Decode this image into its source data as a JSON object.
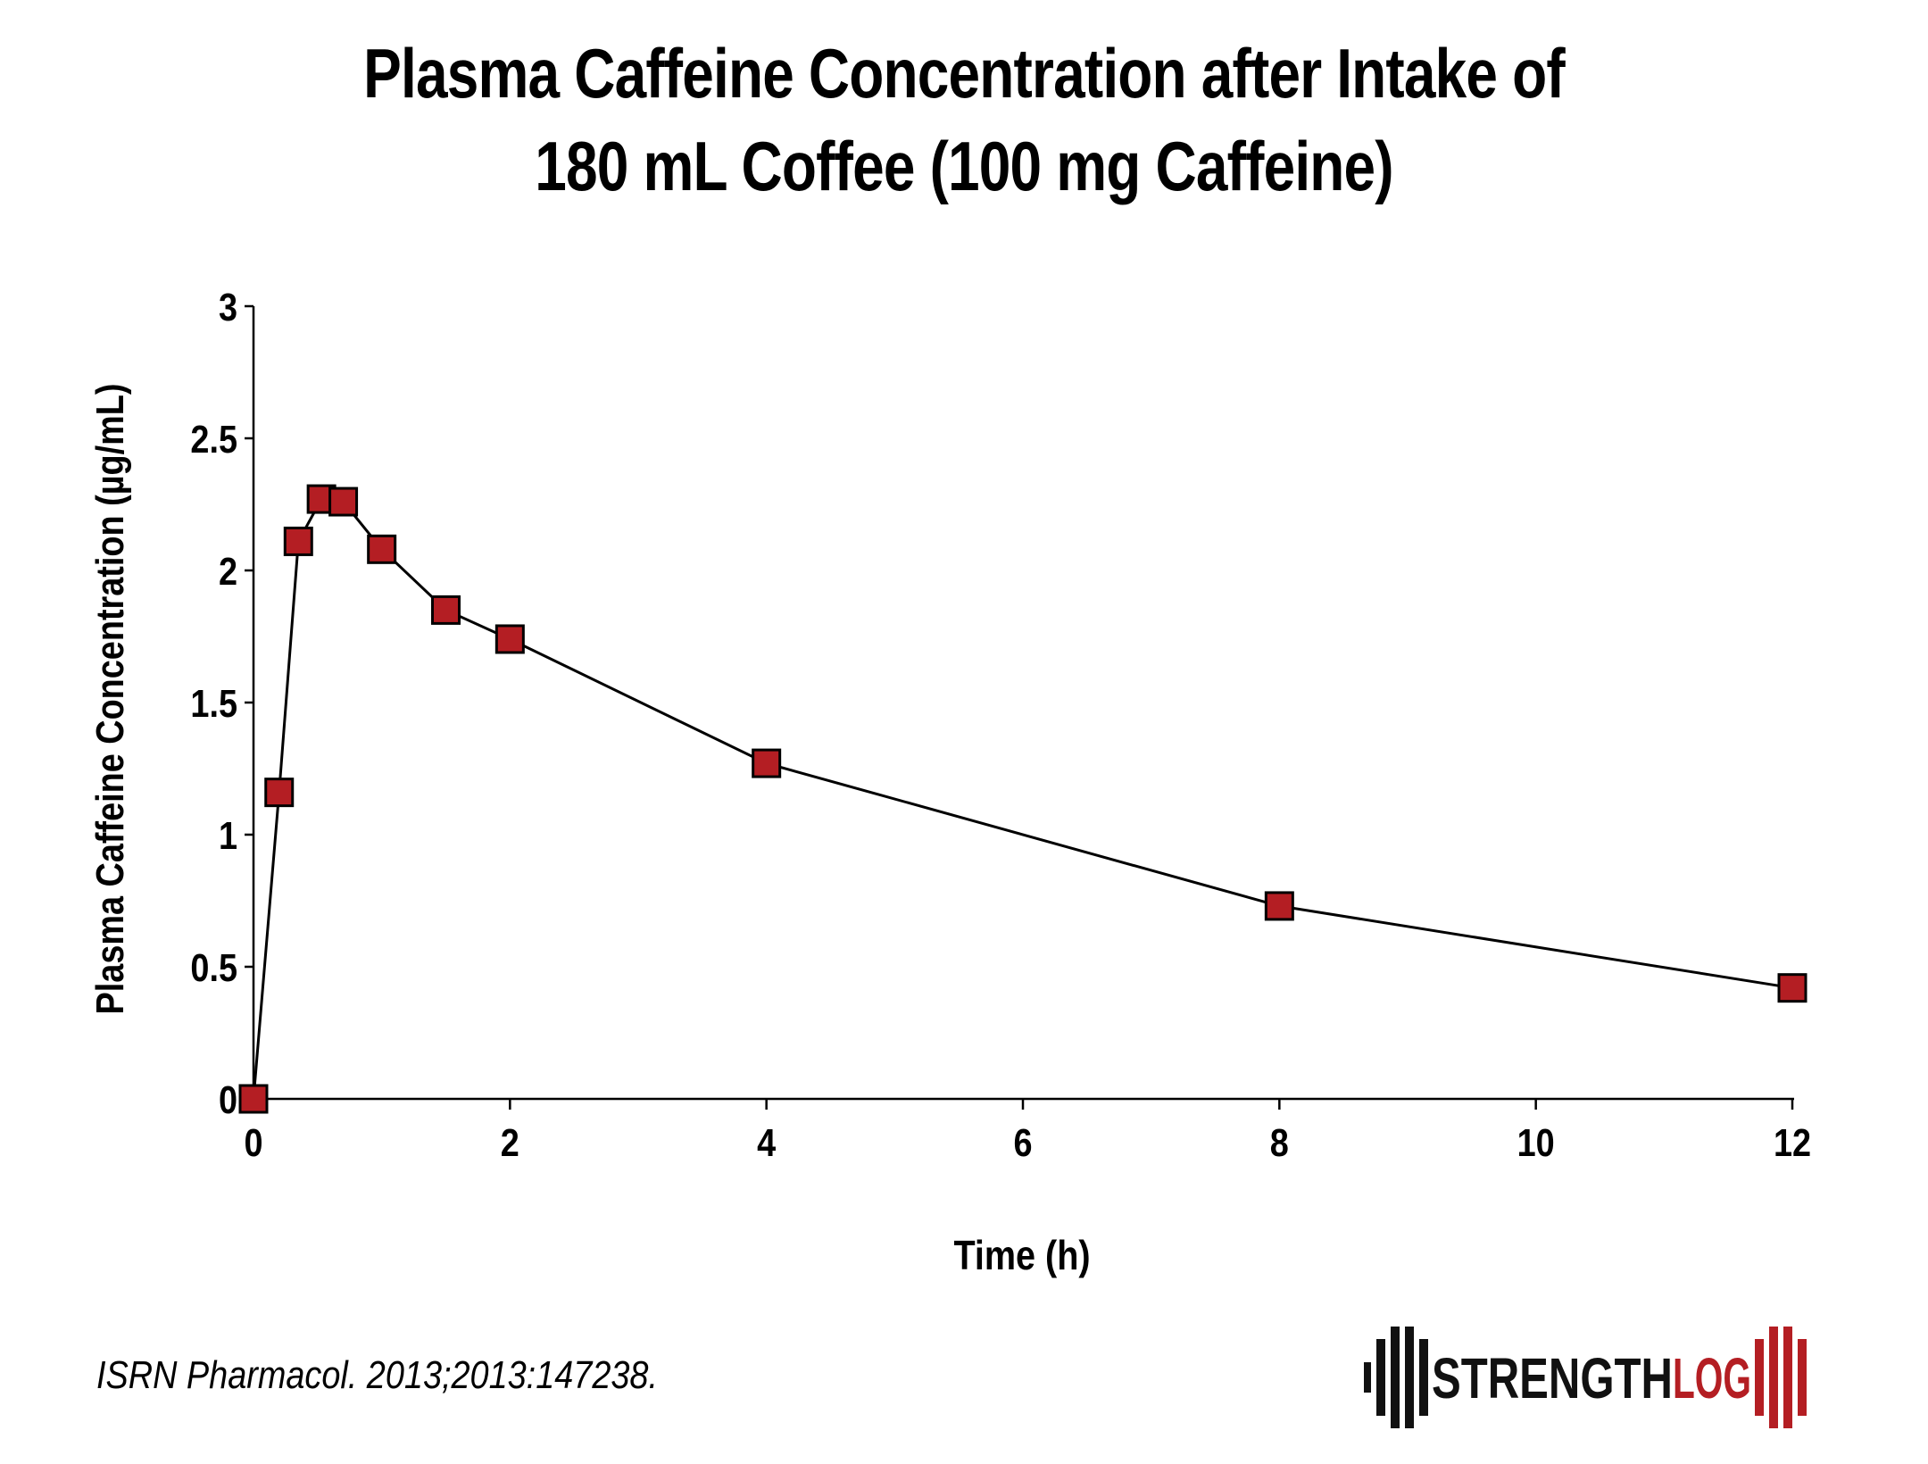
{
  "chart_data": {
    "type": "line",
    "title_line1": "Plasma Caffeine Concentration after Intake of",
    "title_line2": "180 mL Coffee (100 mg Caffeine)",
    "xlabel": "Time (h)",
    "ylabel": "Plasma Caffeine Concentration (µg/mL)",
    "xlim": [
      0,
      12
    ],
    "ylim": [
      0,
      3
    ],
    "xticks": [
      0,
      2,
      4,
      6,
      8,
      10,
      12
    ],
    "yticks": [
      0,
      0.5,
      1,
      1.5,
      2,
      2.5,
      3
    ],
    "ytick_labels": [
      "0",
      "0.5",
      "1",
      "1.5",
      "2",
      "2.5",
      "3"
    ],
    "grid": false,
    "series": [
      {
        "x": [
          0,
          0.2,
          0.35,
          0.53,
          0.7,
          1,
          1.5,
          2,
          4,
          8,
          12
        ],
        "y": [
          0,
          1.16,
          2.11,
          2.27,
          2.26,
          2.08,
          1.85,
          1.74,
          1.27,
          0.73,
          0.42
        ],
        "marker": "square",
        "marker_color": "#b41e23",
        "line_color": "#000000"
      }
    ]
  },
  "citation": "ISRN Pharmacol. 2013;2013:147238.",
  "logo": {
    "text_dark": "STRENGTH",
    "text_red": "LOG",
    "dark_color": "#111111",
    "red_color": "#b41e23"
  }
}
